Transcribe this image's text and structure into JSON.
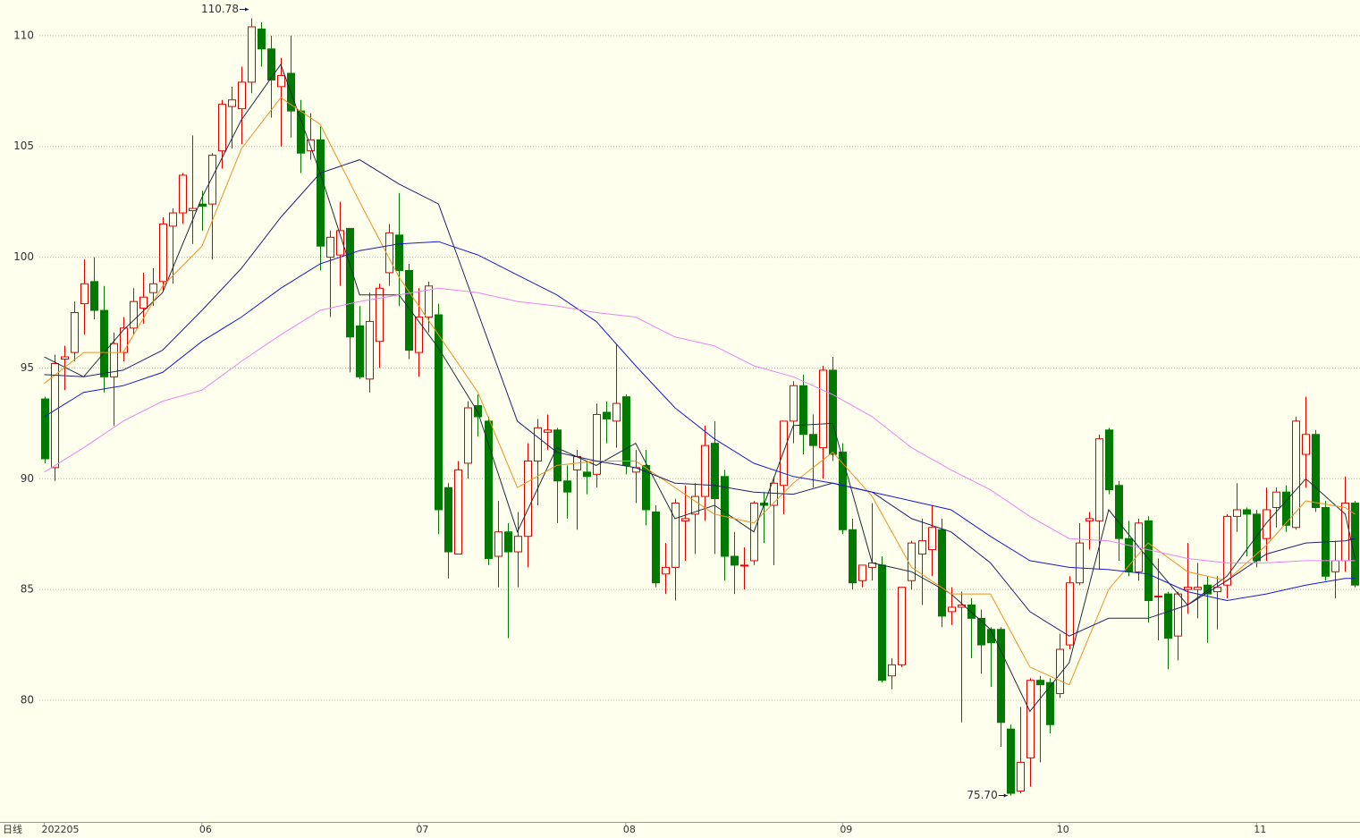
{
  "chart_data": {
    "type": "candlestick",
    "period": "日线",
    "ylim": [
      74.55,
      111.61
    ],
    "yticks": [
      80,
      85,
      90,
      95,
      100,
      105,
      110
    ],
    "grid": true,
    "up_color": "#e00000",
    "down_color": "#007a00",
    "high_label": "110.78",
    "low_label": "75.70",
    "categories": [
      "202205",
      null,
      null,
      null,
      null,
      null,
      null,
      null,
      null,
      null,
      null,
      null,
      null,
      null,
      null,
      null,
      "06",
      null,
      null,
      null,
      null,
      null,
      null,
      null,
      null,
      null,
      null,
      null,
      null,
      null,
      null,
      null,
      null,
      null,
      null,
      null,
      null,
      null,
      "07",
      null,
      null,
      null,
      null,
      null,
      null,
      null,
      null,
      null,
      null,
      null,
      null,
      null,
      null,
      null,
      null,
      null,
      null,
      null,
      null,
      "08",
      null,
      null,
      null,
      null,
      null,
      null,
      null,
      null,
      null,
      null,
      null,
      null,
      null,
      null,
      null,
      null,
      null,
      null,
      null,
      null,
      null,
      "09",
      null,
      null,
      null,
      null,
      null,
      null,
      null,
      null,
      null,
      null,
      null,
      null,
      null,
      null,
      null,
      null,
      null,
      null,
      null,
      null,
      null,
      "10",
      null,
      null,
      null,
      null,
      null,
      null,
      null,
      null,
      null,
      null,
      null,
      null,
      null,
      null,
      null,
      null,
      null,
      null,
      null,
      "11",
      null,
      null,
      null,
      null,
      null,
      null,
      null,
      null,
      null,
      null
    ],
    "ohlc": [
      [
        93.6,
        93.7,
        90.7,
        90.9
      ],
      [
        90.5,
        95.6,
        89.9,
        95.2
      ],
      [
        95.4,
        96.0,
        94.0,
        95.5
      ],
      [
        95.7,
        98.0,
        95.3,
        97.5
      ],
      [
        97.9,
        99.9,
        96.5,
        98.8
      ],
      [
        98.9,
        100.0,
        97.2,
        97.6
      ],
      [
        97.6,
        98.7,
        93.9,
        94.6
      ],
      [
        94.6,
        96.6,
        92.4,
        96.1
      ],
      [
        95.7,
        97.3,
        95.3,
        96.8
      ],
      [
        96.8,
        98.6,
        96.5,
        98.0
      ],
      [
        97.7,
        99.3,
        97.0,
        98.2
      ],
      [
        98.4,
        99.5,
        97.8,
        98.8
      ],
      [
        98.9,
        101.8,
        98.5,
        101.5
      ],
      [
        101.4,
        102.2,
        98.8,
        102.0
      ],
      [
        102.0,
        103.8,
        101.5,
        103.7
      ],
      [
        102.1,
        105.5,
        100.6,
        102.2
      ],
      [
        102.4,
        103.0,
        101.2,
        102.3
      ],
      [
        102.4,
        104.7,
        99.9,
        104.6
      ],
      [
        104.8,
        107.1,
        104.0,
        106.9
      ],
      [
        106.8,
        107.7,
        104.9,
        107.1
      ],
      [
        106.7,
        108.6,
        105.1,
        107.9
      ],
      [
        107.9,
        110.78,
        107.4,
        110.4
      ],
      [
        110.3,
        110.6,
        108.6,
        109.4
      ],
      [
        109.4,
        110.0,
        106.3,
        108.0
      ],
      [
        107.7,
        109.0,
        105.0,
        108.2
      ],
      [
        108.3,
        110.0,
        105.4,
        106.6
      ],
      [
        106.6,
        107.1,
        103.8,
        104.7
      ],
      [
        104.8,
        106.5,
        104.4,
        105.3
      ],
      [
        105.3,
        105.9,
        99.4,
        100.5
      ],
      [
        100.0,
        101.2,
        97.3,
        100.9
      ],
      [
        100.1,
        102.5,
        98.7,
        101.2
      ],
      [
        101.3,
        101.3,
        94.8,
        96.4
      ],
      [
        96.9,
        97.8,
        94.5,
        94.6
      ],
      [
        94.5,
        98.4,
        93.9,
        97.1
      ],
      [
        96.2,
        98.8,
        95.0,
        98.6
      ],
      [
        99.3,
        101.5,
        98.7,
        101.1
      ],
      [
        101.0,
        102.9,
        97.8,
        99.4
      ],
      [
        99.4,
        99.7,
        95.4,
        95.8
      ],
      [
        95.7,
        98.6,
        94.6,
        97.3
      ],
      [
        97.3,
        98.9,
        96.6,
        98.7
      ],
      [
        97.4,
        97.9,
        87.5,
        88.6
      ],
      [
        89.6,
        89.8,
        85.5,
        86.7
      ],
      [
        86.6,
        90.8,
        86.6,
        90.4
      ],
      [
        90.7,
        93.5,
        90.0,
        93.2
      ],
      [
        93.3,
        93.8,
        91.9,
        92.8
      ],
      [
        92.6,
        92.8,
        86.1,
        86.4
      ],
      [
        86.5,
        89.0,
        85.1,
        87.6
      ],
      [
        87.6,
        88.0,
        82.8,
        86.7
      ],
      [
        86.7,
        88.5,
        85.1,
        87.4
      ],
      [
        87.4,
        91.6,
        86.0,
        90.8
      ],
      [
        90.8,
        92.7,
        88.8,
        92.3
      ],
      [
        92.1,
        92.9,
        91.3,
        92.2
      ],
      [
        92.2,
        92.3,
        88.0,
        89.9
      ],
      [
        89.9,
        90.6,
        88.2,
        89.4
      ],
      [
        90.4,
        91.3,
        87.7,
        91.0
      ],
      [
        90.3,
        90.8,
        89.3,
        90.1
      ],
      [
        90.2,
        93.4,
        89.6,
        92.9
      ],
      [
        93.0,
        93.5,
        91.6,
        92.7
      ],
      [
        92.6,
        96.1,
        91.4,
        93.4
      ],
      [
        93.7,
        93.8,
        90.2,
        90.6
      ],
      [
        90.3,
        91.3,
        88.9,
        90.5
      ],
      [
        90.6,
        91.3,
        87.9,
        88.6
      ],
      [
        88.5,
        88.8,
        85.1,
        85.3
      ],
      [
        85.7,
        87.1,
        84.8,
        86.0
      ],
      [
        86.0,
        89.1,
        84.5,
        88.9
      ],
      [
        88.1,
        89.7,
        86.3,
        88.2
      ],
      [
        88.4,
        89.8,
        86.6,
        89.2
      ],
      [
        89.2,
        92.4,
        88.1,
        91.5
      ],
      [
        91.6,
        92.6,
        86.6,
        89.1
      ],
      [
        90.1,
        90.4,
        85.4,
        86.5
      ],
      [
        86.5,
        87.6,
        84.8,
        86.1
      ],
      [
        86.1,
        86.9,
        85.0,
        86.1
      ],
      [
        86.3,
        89.0,
        86.1,
        88.9
      ],
      [
        88.9,
        89.4,
        87.1,
        88.8
      ],
      [
        88.8,
        90.1,
        86.1,
        89.8
      ],
      [
        89.7,
        92.6,
        88.4,
        92.6
      ],
      [
        92.6,
        94.4,
        91.6,
        94.2
      ],
      [
        94.2,
        94.7,
        91.1,
        92.0
      ],
      [
        92.0,
        92.9,
        89.6,
        91.5
      ],
      [
        91.4,
        95.1,
        90.0,
        94.9
      ],
      [
        94.9,
        95.5,
        90.8,
        91.1
      ],
      [
        91.2,
        91.6,
        87.5,
        87.7
      ],
      [
        87.7,
        88.2,
        85.0,
        85.3
      ],
      [
        85.4,
        86.1,
        85.1,
        86.1
      ],
      [
        86.0,
        88.9,
        85.4,
        86.2
      ],
      [
        86.1,
        86.5,
        80.8,
        80.9
      ],
      [
        81.1,
        81.9,
        80.5,
        81.6
      ],
      [
        81.6,
        85.1,
        81.5,
        85.1
      ],
      [
        85.4,
        87.2,
        85.0,
        87.1
      ],
      [
        86.6,
        88.2,
        84.3,
        87.2
      ],
      [
        86.8,
        88.8,
        85.6,
        87.8
      ],
      [
        87.7,
        88.2,
        83.3,
        83.8
      ],
      [
        84.0,
        85.1,
        83.4,
        84.2
      ],
      [
        84.2,
        84.9,
        79.0,
        84.3
      ],
      [
        84.3,
        84.6,
        81.9,
        83.7
      ],
      [
        83.7,
        84.1,
        81.2,
        82.5
      ],
      [
        83.2,
        83.3,
        80.6,
        82.6
      ],
      [
        83.2,
        83.3,
        77.9,
        79.0
      ],
      [
        78.7,
        78.9,
        75.7,
        75.8
      ],
      [
        75.9,
        79.7,
        75.8,
        77.2
      ],
      [
        77.4,
        81.0,
        76.1,
        80.9
      ],
      [
        80.9,
        81.1,
        77.2,
        80.7
      ],
      [
        80.8,
        81.0,
        78.5,
        78.9
      ],
      [
        80.3,
        83.0,
        80.1,
        82.3
      ],
      [
        82.5,
        85.6,
        82.3,
        85.3
      ],
      [
        85.3,
        88.0,
        85.2,
        87.1
      ],
      [
        88.1,
        88.5,
        86.8,
        88.2
      ],
      [
        88.1,
        92.0,
        85.9,
        91.8
      ],
      [
        92.2,
        92.3,
        89.3,
        89.5
      ],
      [
        89.7,
        89.9,
        86.3,
        87.3
      ],
      [
        87.3,
        88.1,
        85.6,
        85.8
      ],
      [
        85.8,
        88.2,
        85.4,
        88.0
      ],
      [
        88.1,
        88.3,
        83.5,
        84.5
      ],
      [
        84.7,
        86.4,
        82.7,
        84.7
      ],
      [
        84.8,
        84.9,
        81.4,
        82.8
      ],
      [
        82.9,
        84.9,
        81.8,
        84.8
      ],
      [
        85.0,
        87.1,
        83.9,
        85.1
      ],
      [
        85.0,
        86.2,
        83.7,
        85.1
      ],
      [
        85.2,
        85.6,
        82.6,
        84.8
      ],
      [
        84.9,
        85.6,
        83.2,
        85.1
      ],
      [
        85.2,
        88.4,
        84.6,
        88.3
      ],
      [
        88.3,
        89.8,
        87.6,
        88.6
      ],
      [
        88.6,
        88.7,
        86.5,
        88.4
      ],
      [
        88.4,
        88.6,
        86.0,
        86.3
      ],
      [
        87.3,
        89.6,
        86.3,
        88.6
      ],
      [
        88.7,
        89.6,
        87.8,
        89.4
      ],
      [
        89.4,
        89.7,
        87.6,
        87.9
      ],
      [
        87.8,
        92.8,
        87.7,
        92.6
      ],
      [
        91.1,
        93.7,
        89.6,
        92.0
      ],
      [
        92.0,
        92.2,
        88.5,
        88.7
      ],
      [
        88.7,
        89.0,
        85.4,
        85.6
      ],
      [
        85.8,
        87.2,
        84.6,
        86.3
      ],
      [
        86.3,
        90.1,
        85.8,
        88.9
      ],
      [
        88.9,
        89.0,
        85.1,
        85.2
      ]
    ],
    "lines": {
      "x": [
        0,
        4,
        8,
        12,
        16,
        20,
        24,
        28,
        32,
        36,
        40,
        44,
        48,
        52,
        56,
        60,
        64,
        68,
        72,
        76,
        80,
        84,
        88,
        92,
        96,
        100,
        104,
        108,
        112,
        116,
        120,
        124,
        128,
        132,
        133
      ],
      "series": [
        {
          "color": "#1c2c3c",
          "values": [
            95.5,
            94.6,
            96.7,
            98.4,
            102.7,
            106.2,
            108.7,
            103.8,
            98.3,
            98.3,
            95.9,
            93.0,
            87.6,
            91.4,
            90.6,
            91.6,
            88.2,
            88.8,
            87.6,
            92.4,
            92.5,
            86.2,
            85.8,
            84.8,
            83.2,
            79.5,
            81.7,
            88.6,
            86.4,
            84.3,
            85.6,
            88.0,
            90.0,
            88.4,
            86.4
          ]
        },
        {
          "color": "#f09020",
          "values": [
            94.3,
            95.7,
            95.7,
            98.7,
            100.5,
            104.9,
            107.2,
            106.0,
            102.5,
            99.1,
            96.5,
            93.9,
            89.6,
            90.6,
            90.8,
            90.8,
            89.6,
            88.4,
            88.0,
            89.8,
            91.2,
            89.2,
            86.0,
            84.8,
            84.8,
            81.5,
            80.7,
            85.0,
            87.1,
            85.8,
            85.4,
            87.0,
            89.0,
            88.7,
            88.4
          ]
        },
        {
          "color": "#20206e",
          "values": [
            94.7,
            94.6,
            94.9,
            95.8,
            97.6,
            99.5,
            101.8,
            103.8,
            104.4,
            103.3,
            102.4,
            97.5,
            92.6,
            91.2,
            90.8,
            90.5,
            89.8,
            89.7,
            89.4,
            89.3,
            89.8,
            89.4,
            88.2,
            87.6,
            86.2,
            84.0,
            82.9,
            83.7,
            83.7,
            84.3,
            85.4,
            86.6,
            87.1,
            87.2,
            87.3
          ]
        },
        {
          "color": "#1818d0",
          "values": [
            92.8,
            93.9,
            94.2,
            94.8,
            96.2,
            97.3,
            98.6,
            99.7,
            100.3,
            100.6,
            100.7,
            100.1,
            99.2,
            98.3,
            97.1,
            95.1,
            93.2,
            91.8,
            90.7,
            90.1,
            89.8,
            89.4,
            89.0,
            88.6,
            87.4,
            86.3,
            86.0,
            85.9,
            85.7,
            84.9,
            84.5,
            84.8,
            85.2,
            85.5,
            85.5
          ]
        },
        {
          "color": "#e884f0",
          "values": [
            90.3,
            91.4,
            92.6,
            93.5,
            94.0,
            95.3,
            96.5,
            97.6,
            98.0,
            98.3,
            98.6,
            98.4,
            98.0,
            97.8,
            97.5,
            97.3,
            96.4,
            96.0,
            95.1,
            94.6,
            93.8,
            92.8,
            91.4,
            90.4,
            89.5,
            88.3,
            87.3,
            87.2,
            86.8,
            86.4,
            86.2,
            86.2,
            86.3,
            86.3,
            86.3
          ]
        }
      ]
    }
  }
}
